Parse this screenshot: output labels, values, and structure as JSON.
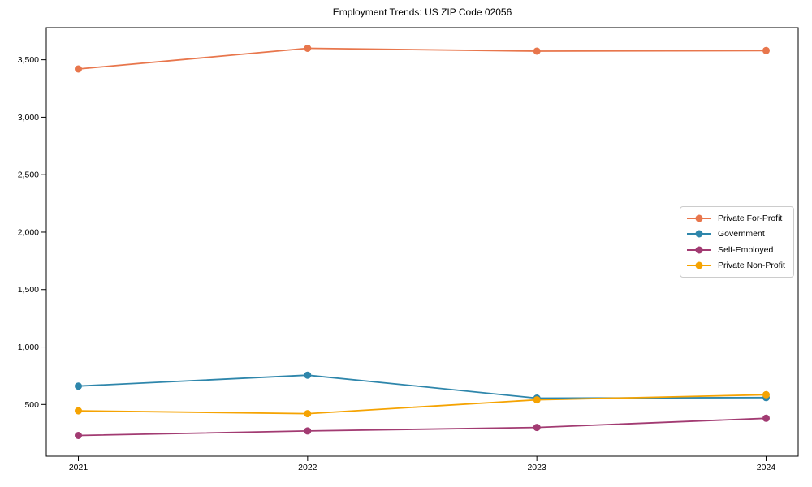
{
  "chart_data": {
    "type": "line",
    "title": "Employment Trends: US ZIP Code 02056",
    "xlabel": "",
    "ylabel": "",
    "grid": false,
    "legend_position": "center-right",
    "x": [
      2021,
      2022,
      2023,
      2024
    ],
    "xlim": [
      2020.86,
      2024.14
    ],
    "ylim": [
      50,
      3780
    ],
    "xticks": {
      "values": [
        2021,
        2022,
        2023,
        2024
      ],
      "labels": [
        "2021",
        "2022",
        "2023",
        "2024"
      ]
    },
    "yticks": {
      "values": [
        500,
        1000,
        1500,
        2000,
        2500,
        3000,
        3500
      ],
      "labels": [
        "500",
        "1,000",
        "1,500",
        "2,000",
        "2,500",
        "3,000",
        "3,500"
      ]
    },
    "series": [
      {
        "name": "Private For-Profit",
        "color": "#E8764C",
        "values": [
          3420,
          3600,
          3575,
          3580
        ]
      },
      {
        "name": "Government",
        "color": "#2E86AB",
        "values": [
          660,
          755,
          555,
          560
        ]
      },
      {
        "name": "Self-Employed",
        "color": "#A23B72",
        "values": [
          230,
          270,
          300,
          380
        ]
      },
      {
        "name": "Private Non-Profit",
        "color": "#F5A302",
        "values": [
          445,
          420,
          540,
          585
        ]
      }
    ],
    "colors": {
      "axis": "#000000",
      "legend_border": "#cccccc",
      "background": "#ffffff"
    }
  }
}
